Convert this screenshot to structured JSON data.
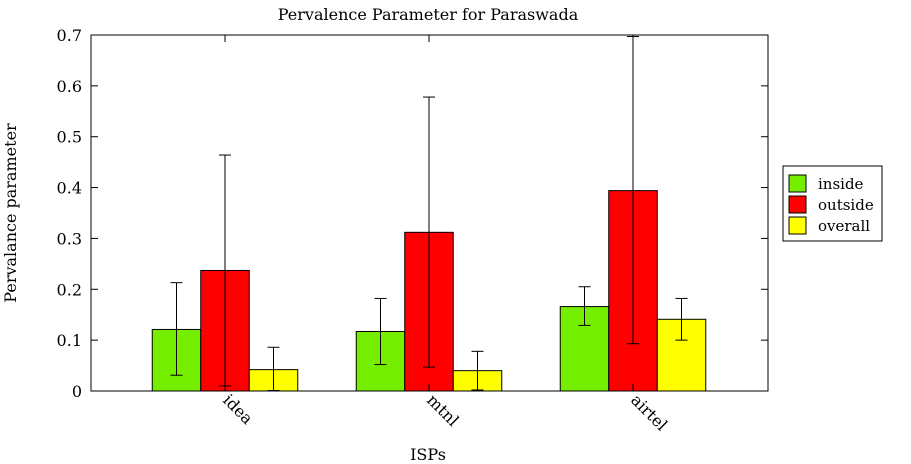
{
  "chart_data": {
    "type": "bar",
    "title": "Pervalence Parameter for Paraswada",
    "xlabel": "ISPs",
    "ylabel": "Pervalance parameter",
    "ylim": [
      0,
      0.7
    ],
    "yticks": [
      "0",
      "0.1",
      "0.2",
      "0.3",
      "0.4",
      "0.5",
      "0.6",
      "0.7"
    ],
    "categories": [
      "idea",
      "mtnl",
      "airtel"
    ],
    "grid": false,
    "legend_position": "right",
    "series": [
      {
        "name": "inside",
        "color": "#76ee00",
        "values": [
          0.121,
          0.117,
          0.166
        ],
        "err_low": [
          0.031,
          0.052,
          0.129
        ],
        "err_high": [
          0.213,
          0.182,
          0.205
        ]
      },
      {
        "name": "outside",
        "color": "#ff0000",
        "values": [
          0.237,
          0.312,
          0.394
        ],
        "err_low": [
          0.01,
          0.047,
          0.093
        ],
        "err_high": [
          0.464,
          0.578,
          0.697
        ]
      },
      {
        "name": "overall",
        "color": "#ffff00",
        "values": [
          0.042,
          0.04,
          0.141
        ],
        "err_low": [
          0.001,
          0.002,
          0.1
        ],
        "err_high": [
          0.086,
          0.078,
          0.182
        ]
      }
    ]
  }
}
